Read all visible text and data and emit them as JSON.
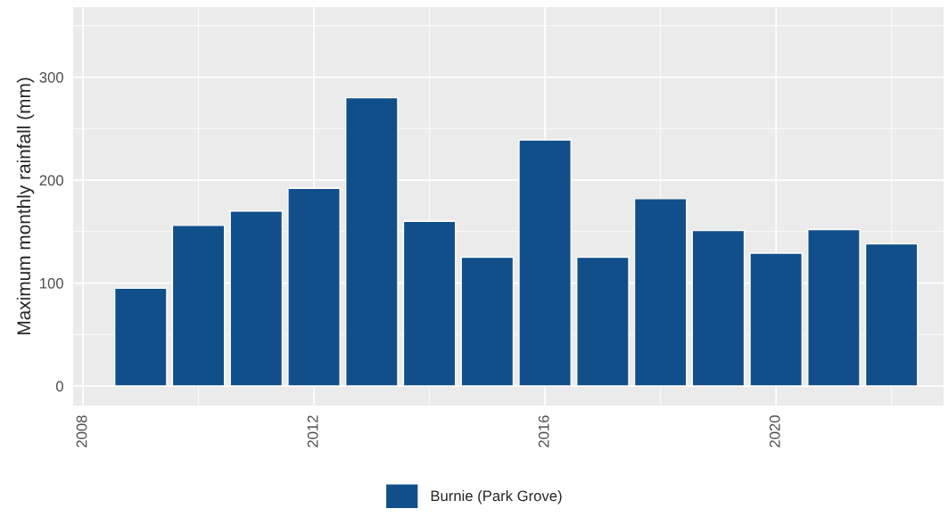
{
  "chart_data": {
    "type": "bar",
    "ylabel": "Maximum monthly rainfall (mm)",
    "x": [
      2009,
      2010,
      2011,
      2012,
      2013,
      2014,
      2015,
      2016,
      2017,
      2018,
      2019,
      2020,
      2021,
      2022
    ],
    "series": [
      {
        "name": "Burnie (Park Grove)",
        "color": "#114f8a",
        "values": [
          95,
          156,
          170,
          192,
          280,
          160,
          125,
          239,
          125,
          182,
          151,
          129,
          152,
          138
        ]
      }
    ],
    "xlim": [
      2007.83,
      2022.9
    ],
    "xticks": [
      2008,
      2012,
      2016,
      2020
    ],
    "ylim": [
      -19,
      368
    ],
    "yticks": [
      0,
      100,
      200,
      300
    ],
    "grid": true,
    "legend": "bottom"
  }
}
